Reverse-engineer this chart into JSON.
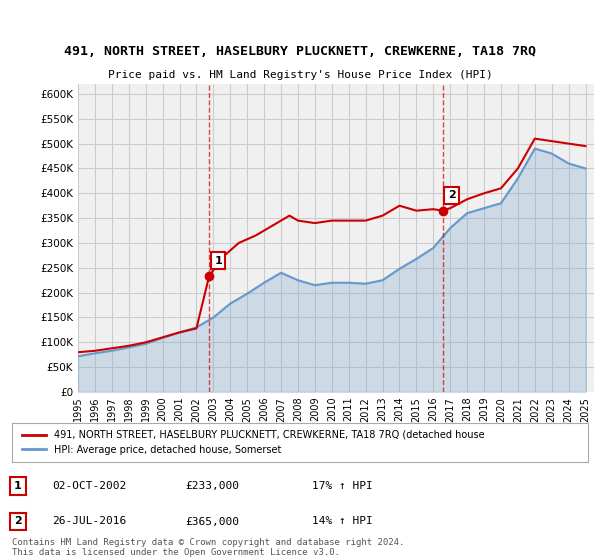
{
  "title": "491, NORTH STREET, HASELBURY PLUCKNETT, CREWKERNE, TA18 7RQ",
  "subtitle": "Price paid vs. HM Land Registry's House Price Index (HPI)",
  "ylabel": "",
  "xlabel": "",
  "ylim": [
    0,
    620000
  ],
  "xlim_start": 1995.0,
  "xlim_end": 2025.5,
  "yticks": [
    0,
    50000,
    100000,
    150000,
    200000,
    250000,
    300000,
    350000,
    400000,
    450000,
    500000,
    550000,
    600000
  ],
  "ytick_labels": [
    "£0",
    "£50K",
    "£100K",
    "£150K",
    "£200K",
    "£250K",
    "£300K",
    "£350K",
    "£400K",
    "£450K",
    "£500K",
    "£550K",
    "£600K"
  ],
  "sale1_x": 2002.75,
  "sale1_y": 233000,
  "sale2_x": 2016.55,
  "sale2_y": 365000,
  "legend_property": "491, NORTH STREET, HASELBURY PLUCKNETT, CREWKERNE, TA18 7RQ (detached house",
  "legend_hpi": "HPI: Average price, detached house, Somerset",
  "table_rows": [
    {
      "num": "1",
      "date": "02-OCT-2002",
      "price": "£233,000",
      "hpi": "17% ↑ HPI"
    },
    {
      "num": "2",
      "date": "26-JUL-2016",
      "price": "£365,000",
      "hpi": "14% ↑ HPI"
    }
  ],
  "footer": "Contains HM Land Registry data © Crown copyright and database right 2024.\nThis data is licensed under the Open Government Licence v3.0.",
  "property_color": "#cc0000",
  "hpi_color": "#6699cc",
  "background_color": "#ffffff",
  "grid_color": "#cccccc",
  "hpi_years": [
    1995,
    1996,
    1997,
    1998,
    1999,
    2000,
    2001,
    2002,
    2003,
    2004,
    2005,
    2006,
    2007,
    2008,
    2009,
    2010,
    2011,
    2012,
    2013,
    2014,
    2015,
    2016,
    2017,
    2018,
    2019,
    2020,
    2021,
    2022,
    2023,
    2024,
    2025
  ],
  "hpi_values": [
    72000,
    78000,
    83000,
    90000,
    97000,
    109000,
    120000,
    130000,
    150000,
    178000,
    198000,
    220000,
    240000,
    225000,
    215000,
    220000,
    220000,
    218000,
    225000,
    248000,
    268000,
    290000,
    330000,
    360000,
    370000,
    380000,
    430000,
    490000,
    480000,
    460000,
    450000
  ],
  "prop_years": [
    1995.0,
    1996.0,
    1997.0,
    1998.0,
    1999.0,
    2000.0,
    2001.0,
    2002.0,
    2002.75,
    2003.5,
    2004.5,
    2005.5,
    2006.5,
    2007.5,
    2008.0,
    2009.0,
    2010.0,
    2011.0,
    2012.0,
    2013.0,
    2014.0,
    2015.0,
    2016.0,
    2016.55,
    2017.0,
    2018.0,
    2019.0,
    2020.0,
    2021.0,
    2022.0,
    2023.0,
    2024.0,
    2025.0
  ],
  "prop_values": [
    80000,
    83000,
    88000,
    93000,
    100000,
    110000,
    120000,
    128000,
    233000,
    270000,
    300000,
    315000,
    335000,
    355000,
    345000,
    340000,
    345000,
    345000,
    345000,
    355000,
    375000,
    365000,
    368000,
    365000,
    370000,
    388000,
    400000,
    410000,
    450000,
    510000,
    505000,
    500000,
    495000
  ]
}
